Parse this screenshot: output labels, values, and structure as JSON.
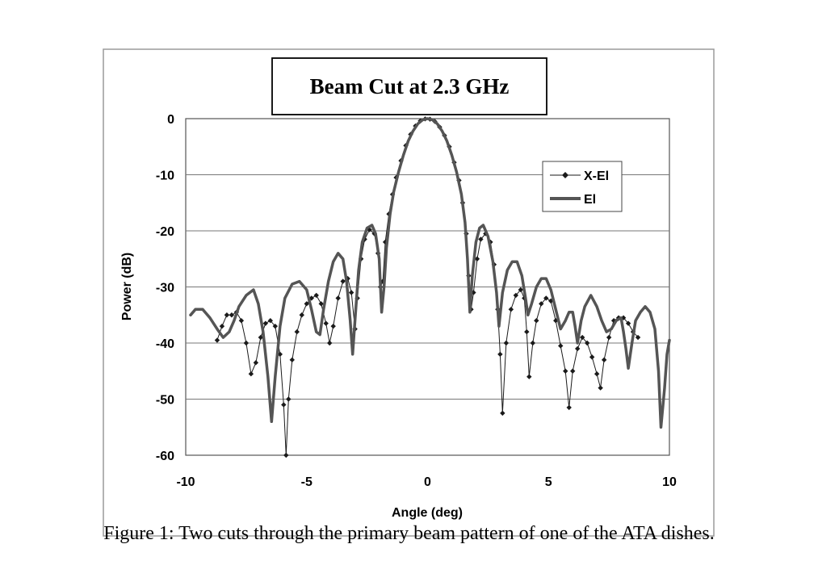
{
  "chart_data": {
    "type": "line",
    "title": "Beam Cut at 2.3 GHz",
    "xlabel": "Angle (deg)",
    "ylabel": "Power (dB)",
    "xlim": [
      -10,
      10
    ],
    "ylim": [
      -60,
      0
    ],
    "x_ticks": [
      -10,
      -5,
      0,
      5,
      10
    ],
    "y_ticks": [
      0,
      -10,
      -20,
      -30,
      -40,
      -50,
      -60
    ],
    "grid": "horizontal",
    "legend_position": "top-right",
    "series": [
      {
        "name": "X-El",
        "color": "#1a1a1a",
        "marker": "diamond",
        "points": [
          [
            -8.7,
            -39.5
          ],
          [
            -8.5,
            -37.0
          ],
          [
            -8.3,
            -35.0
          ],
          [
            -8.1,
            -35.0
          ],
          [
            -7.9,
            -34.5
          ],
          [
            -7.7,
            -36.0
          ],
          [
            -7.5,
            -40.0
          ],
          [
            -7.3,
            -45.5
          ],
          [
            -7.1,
            -43.5
          ],
          [
            -6.9,
            -39.0
          ],
          [
            -6.7,
            -36.5
          ],
          [
            -6.5,
            -36.0
          ],
          [
            -6.3,
            -37.0
          ],
          [
            -6.1,
            -42.0
          ],
          [
            -5.95,
            -51.0
          ],
          [
            -5.85,
            -60.0
          ],
          [
            -5.75,
            -50.0
          ],
          [
            -5.6,
            -43.0
          ],
          [
            -5.4,
            -38.0
          ],
          [
            -5.2,
            -35.0
          ],
          [
            -5.0,
            -33.0
          ],
          [
            -4.8,
            -32.0
          ],
          [
            -4.6,
            -31.5
          ],
          [
            -4.4,
            -33.0
          ],
          [
            -4.2,
            -36.5
          ],
          [
            -4.05,
            -40.0
          ],
          [
            -3.9,
            -37.0
          ],
          [
            -3.7,
            -32.0
          ],
          [
            -3.5,
            -29.0
          ],
          [
            -3.3,
            -28.5
          ],
          [
            -3.15,
            -31.0
          ],
          [
            -3.0,
            -37.5
          ],
          [
            -2.9,
            -32.0
          ],
          [
            -2.75,
            -25.0
          ],
          [
            -2.6,
            -21.5
          ],
          [
            -2.4,
            -19.8
          ],
          [
            -2.2,
            -20.5
          ],
          [
            -2.05,
            -24.0
          ],
          [
            -1.95,
            -30.0
          ],
          [
            -1.85,
            -29.0
          ],
          [
            -1.75,
            -22.0
          ],
          [
            -1.6,
            -17.0
          ],
          [
            -1.45,
            -13.5
          ],
          [
            -1.3,
            -10.5
          ],
          [
            -1.1,
            -7.5
          ],
          [
            -0.9,
            -4.8
          ],
          [
            -0.7,
            -2.8
          ],
          [
            -0.5,
            -1.3
          ],
          [
            -0.3,
            -0.4
          ],
          [
            -0.1,
            -0.05
          ],
          [
            0.1,
            -0.1
          ],
          [
            0.3,
            -0.5
          ],
          [
            0.5,
            -1.5
          ],
          [
            0.7,
            -3.0
          ],
          [
            0.9,
            -5.0
          ],
          [
            1.1,
            -7.8
          ],
          [
            1.3,
            -11.0
          ],
          [
            1.45,
            -15.0
          ],
          [
            1.6,
            -20.5
          ],
          [
            1.7,
            -28.0
          ],
          [
            1.8,
            -34.0
          ],
          [
            1.9,
            -31.0
          ],
          [
            2.05,
            -25.0
          ],
          [
            2.2,
            -21.5
          ],
          [
            2.4,
            -20.5
          ],
          [
            2.6,
            -22.0
          ],
          [
            2.75,
            -26.0
          ],
          [
            2.9,
            -34.0
          ],
          [
            3.0,
            -42.0
          ],
          [
            3.1,
            -52.5
          ],
          [
            3.25,
            -40.0
          ],
          [
            3.45,
            -34.0
          ],
          [
            3.65,
            -31.5
          ],
          [
            3.85,
            -30.5
          ],
          [
            4.0,
            -32.0
          ],
          [
            4.1,
            -38.0
          ],
          [
            4.2,
            -46.0
          ],
          [
            4.35,
            -40.0
          ],
          [
            4.5,
            -36.0
          ],
          [
            4.7,
            -33.0
          ],
          [
            4.9,
            -32.0
          ],
          [
            5.1,
            -32.5
          ],
          [
            5.3,
            -36.0
          ],
          [
            5.5,
            -40.5
          ],
          [
            5.7,
            -45.0
          ],
          [
            5.85,
            -51.5
          ],
          [
            6.0,
            -45.0
          ],
          [
            6.2,
            -41.0
          ],
          [
            6.4,
            -39.0
          ],
          [
            6.6,
            -40.0
          ],
          [
            6.8,
            -42.5
          ],
          [
            7.0,
            -45.5
          ],
          [
            7.15,
            -48.0
          ],
          [
            7.3,
            -43.0
          ],
          [
            7.5,
            -39.0
          ],
          [
            7.7,
            -36.0
          ],
          [
            7.9,
            -35.5
          ],
          [
            8.1,
            -35.5
          ],
          [
            8.3,
            -36.5
          ],
          [
            8.5,
            -38.0
          ],
          [
            8.7,
            -39.0
          ]
        ]
      },
      {
        "name": "El",
        "color": "#555555",
        "marker": "none",
        "points": [
          [
            -9.8,
            -35.0
          ],
          [
            -9.6,
            -34.0
          ],
          [
            -9.3,
            -34.0
          ],
          [
            -9.0,
            -35.5
          ],
          [
            -8.7,
            -37.5
          ],
          [
            -8.45,
            -39.0
          ],
          [
            -8.2,
            -38.0
          ],
          [
            -8.0,
            -36.0
          ],
          [
            -7.8,
            -33.5
          ],
          [
            -7.5,
            -31.5
          ],
          [
            -7.2,
            -30.5
          ],
          [
            -7.0,
            -33.0
          ],
          [
            -6.8,
            -38.0
          ],
          [
            -6.6,
            -46.0
          ],
          [
            -6.45,
            -54.0
          ],
          [
            -6.3,
            -46.0
          ],
          [
            -6.1,
            -37.0
          ],
          [
            -5.9,
            -32.0
          ],
          [
            -5.6,
            -29.5
          ],
          [
            -5.3,
            -29.0
          ],
          [
            -5.0,
            -30.5
          ],
          [
            -4.8,
            -34.0
          ],
          [
            -4.6,
            -38.0
          ],
          [
            -4.45,
            -38.5
          ],
          [
            -4.3,
            -34.0
          ],
          [
            -4.1,
            -29.0
          ],
          [
            -3.9,
            -25.5
          ],
          [
            -3.7,
            -24.0
          ],
          [
            -3.5,
            -25.0
          ],
          [
            -3.35,
            -29.0
          ],
          [
            -3.2,
            -36.0
          ],
          [
            -3.1,
            -42.0
          ],
          [
            -3.0,
            -36.0
          ],
          [
            -2.85,
            -27.0
          ],
          [
            -2.7,
            -22.0
          ],
          [
            -2.5,
            -19.5
          ],
          [
            -2.3,
            -19.0
          ],
          [
            -2.15,
            -20.5
          ],
          [
            -2.0,
            -25.0
          ],
          [
            -1.9,
            -34.5
          ],
          [
            -1.8,
            -30.0
          ],
          [
            -1.7,
            -23.0
          ],
          [
            -1.55,
            -17.0
          ],
          [
            -1.4,
            -13.0
          ],
          [
            -1.2,
            -9.5
          ],
          [
            -1.0,
            -6.5
          ],
          [
            -0.8,
            -4.0
          ],
          [
            -0.6,
            -2.2
          ],
          [
            -0.4,
            -0.9
          ],
          [
            -0.2,
            -0.2
          ],
          [
            0.0,
            0.0
          ],
          [
            0.2,
            -0.2
          ],
          [
            0.4,
            -0.9
          ],
          [
            0.6,
            -2.2
          ],
          [
            0.8,
            -4.0
          ],
          [
            1.0,
            -6.5
          ],
          [
            1.2,
            -9.5
          ],
          [
            1.4,
            -13.5
          ],
          [
            1.55,
            -18.5
          ],
          [
            1.65,
            -25.0
          ],
          [
            1.75,
            -34.5
          ],
          [
            1.85,
            -28.0
          ],
          [
            2.0,
            -22.0
          ],
          [
            2.15,
            -19.5
          ],
          [
            2.3,
            -19.0
          ],
          [
            2.5,
            -21.0
          ],
          [
            2.7,
            -25.5
          ],
          [
            2.85,
            -31.0
          ],
          [
            2.95,
            -37.0
          ],
          [
            3.1,
            -31.0
          ],
          [
            3.3,
            -27.0
          ],
          [
            3.5,
            -25.5
          ],
          [
            3.7,
            -25.5
          ],
          [
            3.9,
            -28.0
          ],
          [
            4.05,
            -32.0
          ],
          [
            4.15,
            -35.0
          ],
          [
            4.3,
            -33.0
          ],
          [
            4.5,
            -30.0
          ],
          [
            4.7,
            -28.5
          ],
          [
            4.9,
            -28.5
          ],
          [
            5.1,
            -30.5
          ],
          [
            5.3,
            -34.0
          ],
          [
            5.5,
            -37.5
          ],
          [
            5.7,
            -36.0
          ],
          [
            5.85,
            -34.5
          ],
          [
            6.0,
            -34.5
          ],
          [
            6.1,
            -37.0
          ],
          [
            6.2,
            -40.0
          ],
          [
            6.35,
            -36.0
          ],
          [
            6.5,
            -33.5
          ],
          [
            6.75,
            -31.5
          ],
          [
            7.0,
            -33.5
          ],
          [
            7.2,
            -36.0
          ],
          [
            7.4,
            -38.0
          ],
          [
            7.6,
            -37.5
          ],
          [
            7.8,
            -36.0
          ],
          [
            8.0,
            -35.5
          ],
          [
            8.1,
            -38.0
          ],
          [
            8.2,
            -41.0
          ],
          [
            8.3,
            -44.5
          ],
          [
            8.45,
            -40.0
          ],
          [
            8.6,
            -36.0
          ],
          [
            8.8,
            -34.5
          ],
          [
            9.0,
            -33.5
          ],
          [
            9.2,
            -34.5
          ],
          [
            9.4,
            -37.5
          ],
          [
            9.55,
            -45.0
          ],
          [
            9.65,
            -55.0
          ],
          [
            9.8,
            -48.0
          ],
          [
            9.9,
            -42.0
          ],
          [
            10.0,
            -39.5
          ]
        ]
      }
    ]
  },
  "caption": "Figure 1: Two cuts through the primary beam pattern of one of the ATA dishes."
}
